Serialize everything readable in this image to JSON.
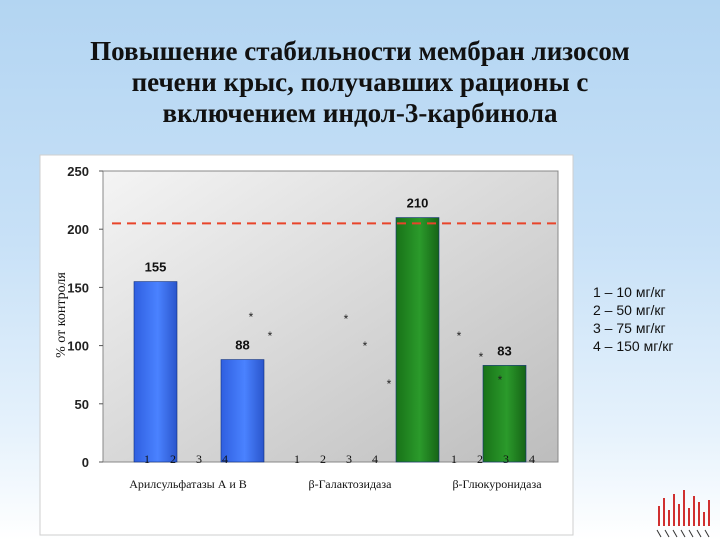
{
  "title_lines": [
    "Повышение стабильности мембран лизосом",
    "печени крыс, получавших рационы с",
    "включением индол-3-карбинола"
  ],
  "legend": [
    "1 – 10 мг/кг",
    "2 – 50 мг/кг",
    "3 – 75 мг/кг",
    "4 – 150 мг/кг"
  ],
  "chart_data": {
    "type": "bar",
    "title": "Повышение стабильности мембран лизосом печени крыс, получавших рационы с включением индол-3-карбинола",
    "ylabel": "% от контроля",
    "xlabel": "",
    "ylim": [
      0,
      250
    ],
    "yticks": [
      0,
      50,
      100,
      150,
      200,
      250
    ],
    "reference_line": 205,
    "grid": false,
    "legend_position": "right",
    "groups": [
      {
        "name": "Арилсульфатазы А и В",
        "categories": [
          "1",
          "2",
          "3",
          "4"
        ],
        "values": [
          155,
          88,
          null,
          null
        ],
        "color": "#3a6df0"
      },
      {
        "name": "β-Галактозидаза",
        "categories": [
          "1",
          "2",
          "3",
          "4"
        ],
        "values": [
          null,
          null,
          null,
          210
        ],
        "color": "#1f8a1f"
      },
      {
        "name": "β-Глюкуронидаза",
        "categories": [
          "1",
          "2",
          "3",
          "4"
        ],
        "values": [
          null,
          null,
          null,
          83
        ],
        "color": "#1f8a1f"
      }
    ],
    "data_labels": [
      "155",
      "88",
      "210",
      "83"
    ],
    "significance_marker": "*",
    "colors": {
      "blue": "#3a6df0",
      "green": "#1f8a1f",
      "reference": "#e8442a",
      "plot_bg": "#d4d4d4"
    }
  }
}
